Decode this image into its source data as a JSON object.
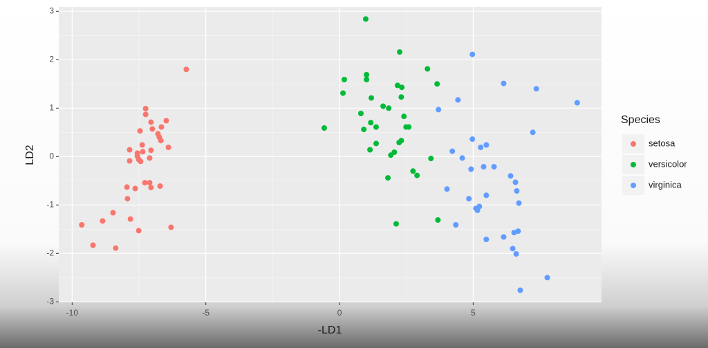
{
  "chart_data": {
    "type": "scatter",
    "x_label": "-LD1",
    "y_label": "LD2",
    "legend_title": "Species",
    "legend_position": "right",
    "grid": true,
    "xlim": [
      -10.5,
      9.8
    ],
    "ylim": [
      -3.01,
      3.09
    ],
    "xticks": [
      -10,
      -5,
      0,
      5
    ],
    "yticks": [
      -3,
      -2,
      -1,
      0,
      1,
      2,
      3
    ],
    "series": [
      {
        "name": "setosa",
        "color": "#f8766d",
        "x": [
          -5.73,
          -7.25,
          -7.25,
          -7.05,
          -6.48,
          -6.66,
          -7.0,
          -7.46,
          -6.79,
          -6.74,
          -6.68,
          -7.38,
          -6.4,
          -7.85,
          -7.05,
          -7.36,
          -7.56,
          -7.51,
          -7.85,
          -7.44,
          -7.1,
          -7.56,
          -7.1,
          -7.28,
          -7.95,
          -7.64,
          -7.05,
          -6.71,
          -7.93,
          -8.47,
          -8.86,
          -7.82,
          -9.64,
          -6.3,
          -7.51,
          -9.22,
          -8.37
        ],
        "y": [
          1.8,
          0.99,
          0.87,
          0.71,
          0.74,
          0.61,
          0.57,
          0.53,
          0.47,
          0.4,
          0.33,
          0.24,
          0.19,
          0.14,
          0.13,
          0.1,
          0.07,
          -0.06,
          -0.09,
          -0.1,
          -0.03,
          0.01,
          -0.54,
          -0.54,
          -0.63,
          -0.66,
          -0.64,
          -0.61,
          -0.87,
          -1.16,
          -1.33,
          -1.29,
          -1.41,
          -1.46,
          -1.53,
          -1.83,
          -1.89
        ]
      },
      {
        "name": "versicolor",
        "color": "#00ba38",
        "x": [
          0.98,
          2.25,
          3.29,
          1.01,
          0.18,
          1.01,
          2.17,
          2.33,
          3.65,
          0.13,
          1.19,
          2.31,
          1.63,
          1.84,
          0.8,
          2.41,
          1.17,
          1.37,
          -0.57,
          2.49,
          2.59,
          0.91,
          2.31,
          2.23,
          1.37,
          1.14,
          2.05,
          1.92,
          3.42,
          2.75,
          2.9,
          1.81,
          2.12,
          3.68
        ],
        "y": [
          2.84,
          2.16,
          1.81,
          1.69,
          1.59,
          1.59,
          1.47,
          1.43,
          1.5,
          1.31,
          1.21,
          1.23,
          1.04,
          1.0,
          0.89,
          0.83,
          0.7,
          0.61,
          0.59,
          0.61,
          0.61,
          0.56,
          0.33,
          0.29,
          0.27,
          0.14,
          0.09,
          0.03,
          -0.04,
          -0.3,
          -0.39,
          -0.44,
          -1.39,
          -1.31
        ]
      },
      {
        "name": "virginica",
        "color": "#619cff",
        "x": [
          4.97,
          6.14,
          7.36,
          8.89,
          4.43,
          3.7,
          7.23,
          4.97,
          5.49,
          5.28,
          4.22,
          4.59,
          5.39,
          5.78,
          4.92,
          6.4,
          6.58,
          6.63,
          5.49,
          4.02,
          4.84,
          6.71,
          5.23,
          5.1,
          5.16,
          4.35,
          6.68,
          6.53,
          5.49,
          6.14,
          6.48,
          6.61,
          7.77,
          6.76
        ],
        "y": [
          2.11,
          1.51,
          1.4,
          1.11,
          1.17,
          0.97,
          0.5,
          0.36,
          0.24,
          0.19,
          0.11,
          -0.03,
          -0.21,
          -0.21,
          -0.26,
          -0.4,
          -0.53,
          -0.71,
          -0.8,
          -0.67,
          -0.87,
          -0.96,
          -1.03,
          -1.07,
          -1.11,
          -1.41,
          -1.54,
          -1.57,
          -1.71,
          -1.66,
          -1.9,
          -2.01,
          -2.5,
          -2.76
        ]
      }
    ]
  }
}
